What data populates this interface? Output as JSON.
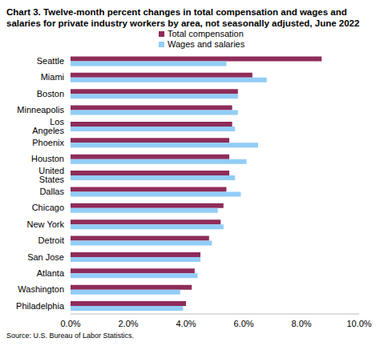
{
  "chart_data": {
    "type": "bar",
    "orientation": "horizontal",
    "title": "Chart 3. Twelve-month percent changes in total compensation and wages and salaries for private industry workers by area, not seasonally adjusted, June 2022",
    "source": "Source: U.S. Bureau of Labor Statistics.",
    "categories": [
      "Seattle",
      "Miami",
      "Boston",
      "Minneapolis",
      "Los Angeles",
      "Phoenix",
      "Houston",
      "United States",
      "Dallas",
      "Chicago",
      "New York",
      "Detroit",
      "San Jose",
      "Atlanta",
      "Washington",
      "Philadelphia"
    ],
    "series": [
      {
        "name": "Total compensation",
        "color": "#8e2c5a",
        "values": [
          8.7,
          6.3,
          5.8,
          5.6,
          5.6,
          5.5,
          5.5,
          5.5,
          5.4,
          5.3,
          5.2,
          4.8,
          4.5,
          4.3,
          4.2,
          4.0
        ]
      },
      {
        "name": "Wages and salaries",
        "color": "#92cdf7",
        "values": [
          5.4,
          6.8,
          5.8,
          5.8,
          5.7,
          6.5,
          6.1,
          5.7,
          5.9,
          5.1,
          5.3,
          4.9,
          4.5,
          4.4,
          3.8,
          3.9
        ]
      }
    ],
    "xlim": [
      0,
      10
    ],
    "xticks": [
      {
        "value": 0,
        "label": "0.0%"
      },
      {
        "value": 2,
        "label": "2.0%"
      },
      {
        "value": 4,
        "label": "4.0%"
      },
      {
        "value": 6,
        "label": "6.0%"
      },
      {
        "value": 8,
        "label": "8.0%"
      },
      {
        "value": 10,
        "label": "10.0%"
      }
    ],
    "grid": false,
    "legend": "top"
  }
}
